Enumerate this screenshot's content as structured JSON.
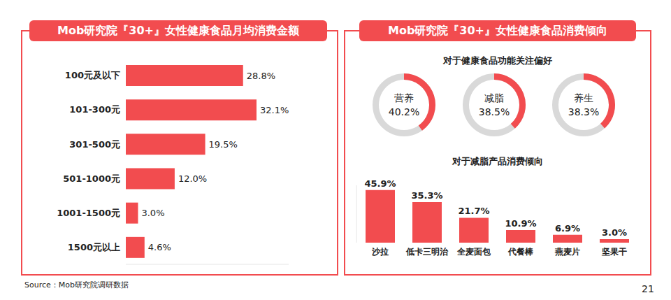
{
  "chart_data": [
    {
      "type": "bar",
      "title": "Mob研究院『30+』女性健康食品月均消费金额",
      "orientation": "horizontal",
      "categories": [
        "100元及以下",
        "101-300元",
        "301-500元",
        "501-1000元",
        "1001-1500元",
        "1500元以上"
      ],
      "values": [
        28.8,
        32.1,
        19.5,
        12.0,
        3.0,
        4.6
      ],
      "value_labels": [
        "28.8%",
        "32.1%",
        "19.5%",
        "12.0%",
        "3.0%",
        "4.6%"
      ],
      "color": "#f24c4f",
      "xlim": [
        0,
        40
      ],
      "data_labels": true,
      "tick_labels": "y",
      "grid": false
    },
    {
      "type": "donut",
      "title": "Mob研究院『30+』女性健康食品消费倾向",
      "subtitle": "对于健康食品功能关注偏好",
      "categories": [
        "营养",
        "减脂",
        "养生"
      ],
      "values": [
        40.2,
        38.5,
        38.3
      ],
      "value_labels": [
        "40.2%",
        "38.5%",
        "38.3%"
      ],
      "color": "#f24c4f",
      "ylim": [
        0,
        100
      ]
    },
    {
      "type": "bar",
      "subtitle": "对于减脂产品消费倾向",
      "categories": [
        "沙拉",
        "低卡三明治",
        "全麦面包",
        "代餐棒",
        "燕麦片",
        "坚果干"
      ],
      "values": [
        45.9,
        35.3,
        21.7,
        10.9,
        6.9,
        3.0
      ],
      "value_labels": [
        "45.9%",
        "35.3%",
        "21.7%",
        "10.9%",
        "6.9%",
        "3.0%"
      ],
      "color": "#f24c4f",
      "ylim": [
        0,
        50
      ],
      "data_labels": true,
      "tick_labels": "x",
      "grid": false
    }
  ],
  "source": "Source：Mob研究院调研数据",
  "page_number": "21"
}
